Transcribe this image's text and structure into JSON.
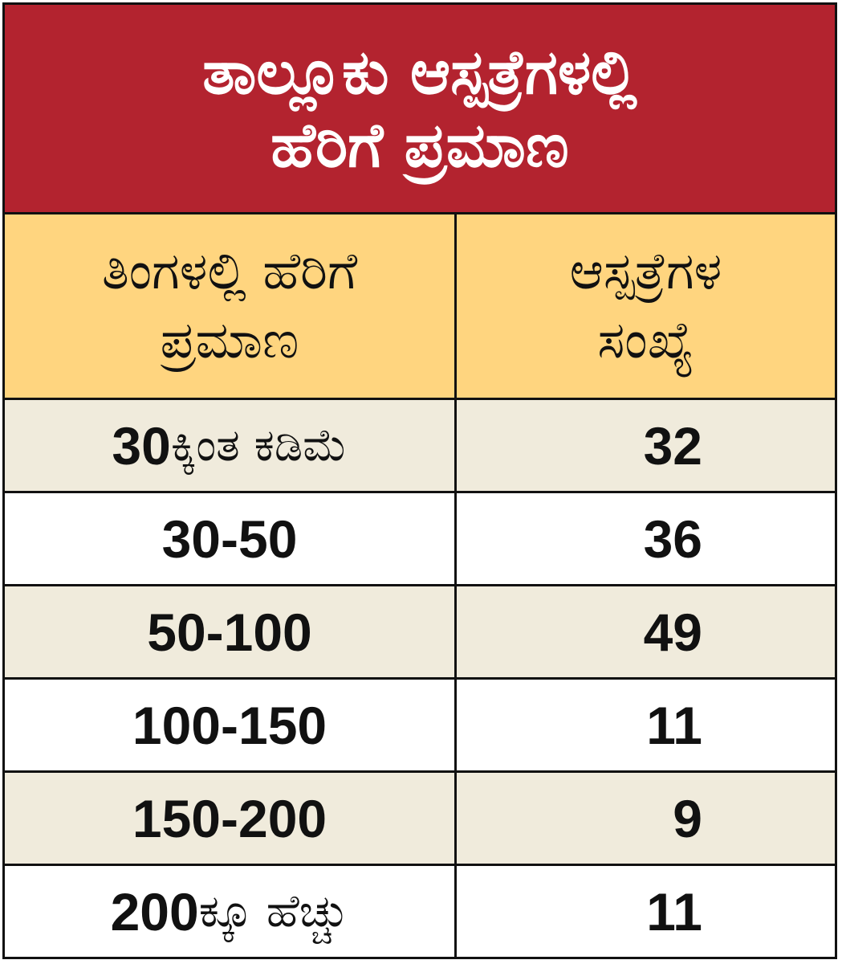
{
  "title": {
    "line1": "ತಾಲ್ಲೂಕು ಆಸ್ಪತ್ರೆಗಳಲ್ಲಿ",
    "line2": "ಹೆರಿಗೆ ಪ್ರಮಾಣ"
  },
  "headers": {
    "col1_line1": "ತಿಂಗಳಲ್ಲಿ ಹೆರಿಗೆ",
    "col1_line2": "ಪ್ರಮಾಣ",
    "col2_line1": "ಆಸ್ಪತ್ರೆಗಳ",
    "col2_line2": "ಸಂಖ್ಯೆ"
  },
  "colors": {
    "title_bg": "#b3232f",
    "header_bg": "#ffd57f",
    "shaded_row_bg": "#f0ebdc"
  },
  "chart_data": {
    "type": "table",
    "columns": [
      "ತಿಂಗಳಲ್ಲಿ ಹೆರಿಗೆ ಪ್ರಮಾಣ",
      "ಆಸ್ಪತ್ರೆಗಳ ಸಂಖ್ಯೆ"
    ],
    "rows": [
      {
        "range_num": "30",
        "range_suffix": "ಕ್ಕಿಂತ ಕಡಿಮೆ",
        "count": "32"
      },
      {
        "range_num": "30-50",
        "range_suffix": "",
        "count": "36"
      },
      {
        "range_num": "50-100",
        "range_suffix": "",
        "count": "49"
      },
      {
        "range_num": "100-150",
        "range_suffix": "",
        "count": "11"
      },
      {
        "range_num": "150-200",
        "range_suffix": "",
        "count": "9"
      },
      {
        "range_num": "200",
        "range_suffix": "ಕ್ಕೂ ಹೆಚ್ಚು",
        "count": "11"
      }
    ]
  }
}
